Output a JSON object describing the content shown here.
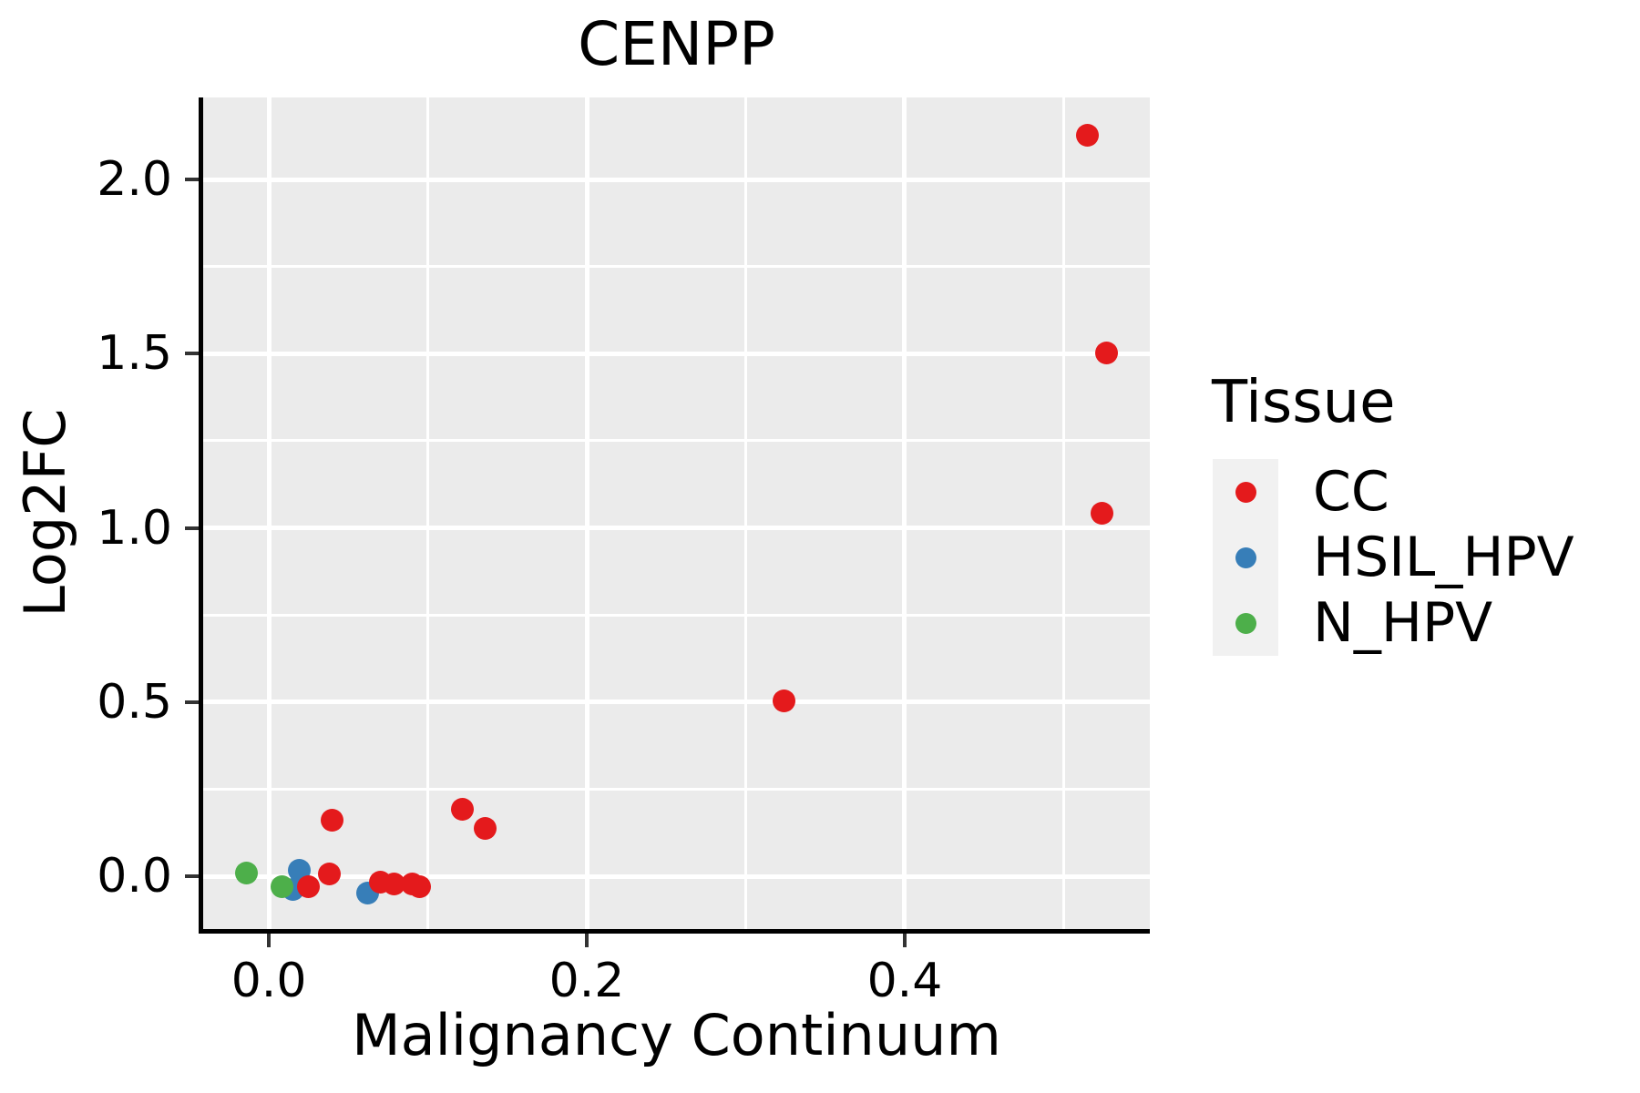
{
  "chart_data": {
    "type": "scatter",
    "title": "CENPP",
    "xlabel": "Malignancy Continuum",
    "ylabel": "Log2FC",
    "xlim": [
      -0.0413,
      0.5542
    ],
    "ylim": [
      -0.1516,
      2.2353
    ],
    "x_major_ticks": [
      0.0,
      0.2,
      0.4
    ],
    "x_tick_labels": [
      "0.0",
      "0.2",
      "0.4"
    ],
    "x_minor_ticks": [
      0.1,
      0.3,
      0.5
    ],
    "y_major_ticks": [
      0.0,
      0.5,
      1.0,
      1.5,
      2.0
    ],
    "y_tick_labels": [
      "0.0",
      "0.5",
      "1.0",
      "1.5",
      "2.0"
    ],
    "y_minor_ticks": [
      0.25,
      0.75,
      1.25,
      1.75
    ],
    "grid": true,
    "panel_background": "#EBEBEB",
    "gridline_color": "#FFFFFF",
    "axis_line_color": "#000000",
    "tick_mark_color": "#333333",
    "point_radius": 12.5,
    "series": [
      {
        "name": "HSIL_HPV",
        "color": "#377EB8",
        "points": [
          [
            0.019,
            0.017
          ],
          [
            0.015,
            -0.037
          ],
          [
            0.062,
            -0.048
          ]
        ]
      },
      {
        "name": "N_HPV",
        "color": "#4DAF4A",
        "points": [
          [
            -0.014,
            0.009
          ],
          [
            0.008,
            -0.031
          ]
        ]
      },
      {
        "name": "CC",
        "color": "#E41A1C",
        "points": [
          [
            0.025,
            -0.029
          ],
          [
            0.038,
            0.007
          ],
          [
            0.04,
            0.16
          ],
          [
            0.07,
            -0.016
          ],
          [
            0.079,
            -0.021
          ],
          [
            0.09,
            -0.021
          ],
          [
            0.095,
            -0.03
          ],
          [
            0.122,
            0.191
          ],
          [
            0.136,
            0.137
          ],
          [
            0.324,
            0.502
          ],
          [
            0.515,
            2.127
          ],
          [
            0.527,
            1.501
          ],
          [
            0.524,
            1.043
          ]
        ]
      }
    ],
    "legend": {
      "title": "Tissue",
      "position": "right",
      "key_background": "#F1F1F1",
      "order": [
        "CC",
        "HSIL_HPV",
        "N_HPV"
      ],
      "dot_radius": 11.5
    }
  }
}
